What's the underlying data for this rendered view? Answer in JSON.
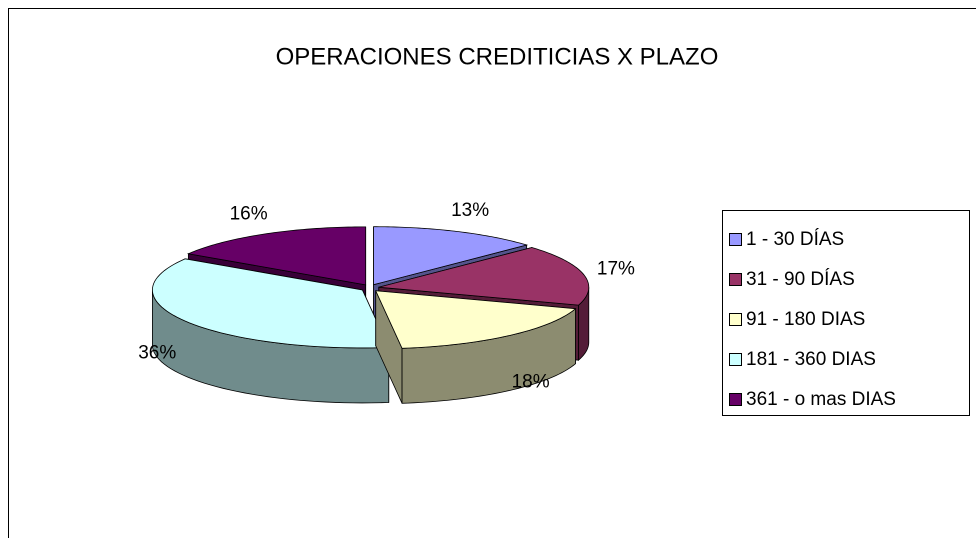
{
  "chart_data": {
    "type": "pie3d",
    "title": "OPERACIONES CREDITICIAS X PLAZO",
    "categories": [
      "1 - 30 DÍAS",
      "31 - 90 DÍAS",
      "91 - 180 DIAS",
      "181 - 360 DIAS",
      "361 -  o mas DIAS"
    ],
    "values": [
      13,
      17,
      18,
      36,
      16
    ],
    "value_labels": [
      "13%",
      "17%",
      "18%",
      "36%",
      "16%"
    ],
    "colors": [
      "#9999ff",
      "#993366",
      "#ffffcc",
      "#ccffff",
      "#660066"
    ],
    "legend": "right"
  }
}
